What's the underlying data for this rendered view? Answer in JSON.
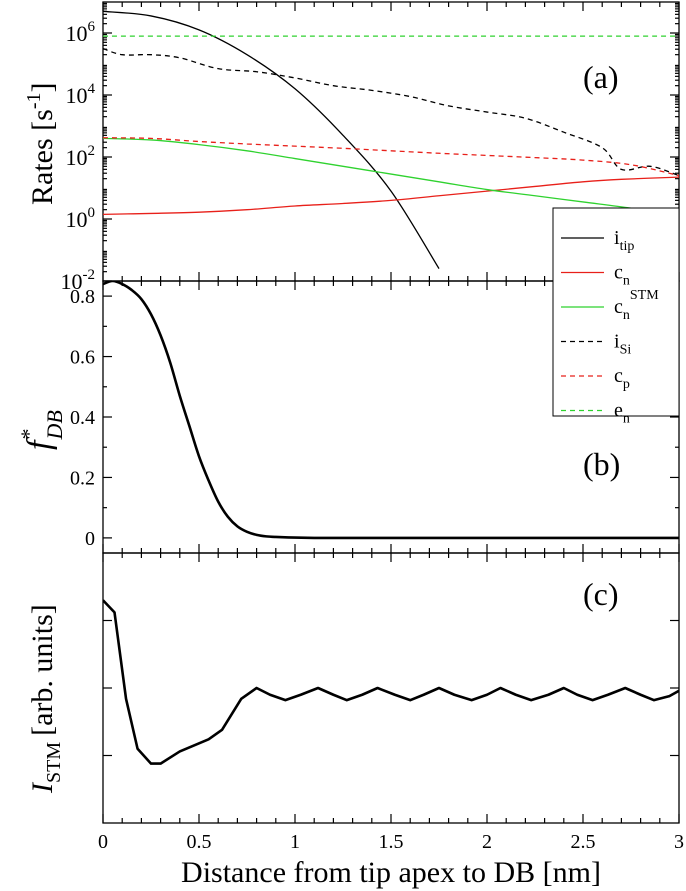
{
  "chart_data": [
    {
      "panel": "(a)",
      "type": "line",
      "yscale": "log",
      "ylabel_main": "Rates [s",
      "ylabel_sup": "-1",
      "ylabel_end": "]",
      "xlim": [
        0,
        3
      ],
      "ylim_log10": [
        -2,
        7
      ],
      "y_tick_exponents": [
        -2,
        0,
        2,
        4,
        6
      ],
      "y_tick_base": "10",
      "legend_position": "right",
      "series": [
        {
          "key": "itip",
          "name": "i",
          "sub": "tip",
          "sup": "",
          "color": "#000000",
          "dash": "",
          "x": [
            0,
            0.25,
            0.5,
            0.75,
            1.0,
            1.25,
            1.5,
            1.75
          ],
          "log10": [
            6.7,
            6.55,
            6.1,
            5.3,
            4.2,
            2.7,
            0.9,
            -1.6
          ]
        },
        {
          "key": "cn",
          "name": "c",
          "sub": "n",
          "sup": "",
          "color": "#e8201a",
          "dash": "",
          "x": [
            0,
            0.25,
            0.5,
            0.75,
            1.0,
            1.25,
            1.5,
            1.75,
            2.0,
            2.25,
            2.5,
            2.7,
            3.0
          ],
          "log10": [
            0.15,
            0.18,
            0.22,
            0.3,
            0.42,
            0.5,
            0.6,
            0.75,
            0.9,
            1.05,
            1.2,
            1.28,
            1.35
          ]
        },
        {
          "key": "cnstm",
          "name": "c",
          "sub": "n",
          "sup": "STM",
          "color": "#2fd22f",
          "dash": "",
          "x": [
            0,
            0.25,
            0.5,
            0.75,
            1.0,
            1.25,
            1.5,
            1.75,
            2.0,
            2.25,
            2.5,
            2.75,
            3.0
          ],
          "log10": [
            2.6,
            2.55,
            2.4,
            2.2,
            1.95,
            1.7,
            1.45,
            1.2,
            0.95,
            0.75,
            0.55,
            0.35,
            0.1
          ]
        },
        {
          "key": "isi",
          "name": "i",
          "sub": "Si",
          "sup": "",
          "color": "#000000",
          "dash": "5,4",
          "x": [
            0,
            0.1,
            0.25,
            0.4,
            0.6,
            0.8,
            1.0,
            1.2,
            1.4,
            1.6,
            1.8,
            2.0,
            2.2,
            2.4,
            2.6,
            2.7,
            2.85,
            3.0
          ],
          "log10": [
            5.5,
            5.3,
            5.3,
            5.2,
            4.85,
            4.75,
            4.55,
            4.3,
            4.15,
            3.95,
            3.65,
            3.45,
            3.25,
            2.8,
            2.3,
            1.6,
            1.7,
            1.4
          ]
        },
        {
          "key": "cp",
          "name": "c",
          "sub": "p",
          "sup": "",
          "color": "#e8201a",
          "dash": "5,4",
          "x": [
            0,
            0.25,
            0.5,
            0.75,
            1.0,
            1.25,
            1.5,
            1.75,
            2.0,
            2.25,
            2.5,
            2.75,
            3.0
          ],
          "log10": [
            2.62,
            2.6,
            2.5,
            2.42,
            2.35,
            2.28,
            2.2,
            2.12,
            2.05,
            1.98,
            1.9,
            1.75,
            1.4
          ]
        },
        {
          "key": "en",
          "name": "e",
          "sub": "n",
          "sup": "",
          "color": "#2fd22f",
          "dash": "5,4",
          "x": [
            0,
            3.0
          ],
          "log10": [
            5.9,
            5.9
          ]
        }
      ]
    },
    {
      "panel": "(b)",
      "type": "line",
      "ylabel_main": "f",
      "ylabel_sup": "*",
      "ylabel_sub": "DB",
      "xlim": [
        0,
        3
      ],
      "ylim": [
        -0.05,
        0.85
      ],
      "y_ticks": [
        "0",
        "0.2",
        "0.4",
        "0.6",
        "0.8"
      ],
      "y_tick_values": [
        0,
        0.2,
        0.4,
        0.6,
        0.8
      ],
      "series": [
        {
          "name": "f*DB",
          "x": [
            0,
            0.05,
            0.1,
            0.15,
            0.2,
            0.25,
            0.3,
            0.35,
            0.4,
            0.45,
            0.5,
            0.55,
            0.6,
            0.65,
            0.7,
            0.75,
            0.8,
            0.85,
            0.9,
            1.0,
            1.1,
            1.2,
            1.5,
            2.0,
            2.5,
            3.0
          ],
          "y": [
            0.84,
            0.85,
            0.84,
            0.82,
            0.79,
            0.74,
            0.67,
            0.58,
            0.47,
            0.37,
            0.27,
            0.19,
            0.12,
            0.07,
            0.038,
            0.02,
            0.01,
            0.005,
            0.003,
            0.001,
            0,
            0,
            0,
            0,
            0,
            0
          ]
        }
      ]
    },
    {
      "panel": "(c)",
      "type": "line",
      "ylabel_main": "I",
      "ylabel_sub": "STM",
      "ylabel_rest": "[arb. units]",
      "xlim": [
        0,
        3
      ],
      "ylim": [
        0,
        1
      ],
      "x_ticks": [
        "0",
        "0.5",
        "1",
        "1.5",
        "2",
        "2.5",
        "3"
      ],
      "x_tick_values": [
        0,
        0.5,
        1,
        1.5,
        2,
        2.5,
        3
      ],
      "xlabel": "Distance from tip apex to DB [nm]",
      "series": [
        {
          "name": "ISTM",
          "x": [
            0,
            0.06,
            0.12,
            0.18,
            0.25,
            0.3,
            0.4,
            0.55,
            0.62,
            0.72,
            0.8,
            0.87,
            0.95,
            1.03,
            1.12,
            1.2,
            1.27,
            1.35,
            1.43,
            1.52,
            1.6,
            1.67,
            1.75,
            1.83,
            1.92,
            2.0,
            2.07,
            2.15,
            2.23,
            2.32,
            2.4,
            2.47,
            2.55,
            2.63,
            2.72,
            2.8,
            2.87,
            2.95,
            3.0
          ],
          "y": [
            0.825,
            0.78,
            0.46,
            0.275,
            0.22,
            0.22,
            0.265,
            0.31,
            0.345,
            0.46,
            0.5,
            0.475,
            0.455,
            0.475,
            0.5,
            0.475,
            0.455,
            0.475,
            0.5,
            0.475,
            0.455,
            0.475,
            0.5,
            0.475,
            0.455,
            0.475,
            0.5,
            0.475,
            0.455,
            0.475,
            0.5,
            0.475,
            0.455,
            0.475,
            0.5,
            0.475,
            0.455,
            0.47,
            0.49
          ]
        }
      ]
    }
  ]
}
